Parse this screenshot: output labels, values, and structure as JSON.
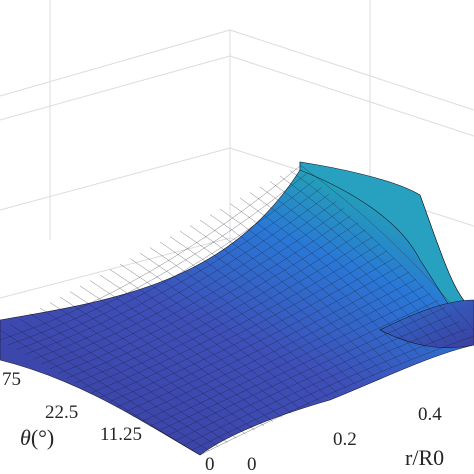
{
  "chart_data": {
    "type": "surface",
    "title": "",
    "xlabel": "r/R0",
    "ylabel": "θ(°)",
    "zlabel": "",
    "x_ticks": [
      "0",
      "0.2",
      "0.4"
    ],
    "y_ticks": [
      "0",
      "11.25",
      "22.5",
      "75"
    ],
    "y_label_parts": {
      "symbol": "θ",
      "unit": "(°)"
    },
    "colormap": "parula",
    "colors": {
      "low": "#3b3fa0",
      "mid": "#2a78d6",
      "high": "#22aab0",
      "mesh": "#1a1a2a",
      "grid": "#dcdcdc",
      "text": "#262626"
    },
    "grid": true,
    "description_of_shape": [
      {
        "position": "front edge (theta = 0)",
        "level": "low"
      },
      {
        "position": "back corner, highest theta",
        "level": "high"
      },
      {
        "position": "right edge near r/R0 = 0.5",
        "level": "rising"
      }
    ]
  }
}
